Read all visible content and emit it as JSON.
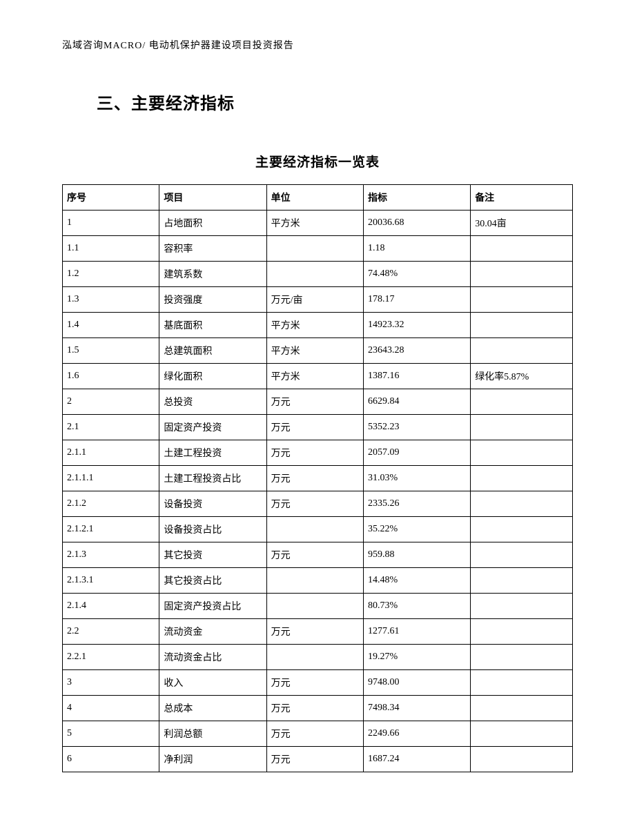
{
  "header": {
    "text": "泓域咨询MACRO/    电动机保护器建设项目投资报告"
  },
  "section": {
    "title": "三、主要经济指标"
  },
  "table": {
    "title": "主要经济指标一览表",
    "columns": [
      "序号",
      "项目",
      "单位",
      "指标",
      "备注"
    ],
    "rows": [
      [
        "1",
        "占地面积",
        "平方米",
        "20036.68",
        "30.04亩"
      ],
      [
        "1.1",
        "容积率",
        "",
        "1.18",
        ""
      ],
      [
        "1.2",
        "建筑系数",
        "",
        "74.48%",
        ""
      ],
      [
        "1.3",
        "投资强度",
        "万元/亩",
        "178.17",
        ""
      ],
      [
        "1.4",
        "基底面积",
        "平方米",
        "14923.32",
        ""
      ],
      [
        "1.5",
        "总建筑面积",
        "平方米",
        "23643.28",
        ""
      ],
      [
        "1.6",
        "绿化面积",
        "平方米",
        "1387.16",
        "绿化率5.87%"
      ],
      [
        "2",
        "总投资",
        "万元",
        "6629.84",
        ""
      ],
      [
        "2.1",
        "固定资产投资",
        "万元",
        "5352.23",
        ""
      ],
      [
        "2.1.1",
        "土建工程投资",
        "万元",
        "2057.09",
        ""
      ],
      [
        "2.1.1.1",
        "土建工程投资占比",
        "万元",
        "31.03%",
        ""
      ],
      [
        "2.1.2",
        "设备投资",
        "万元",
        "2335.26",
        ""
      ],
      [
        "2.1.2.1",
        "设备投资占比",
        "",
        "35.22%",
        ""
      ],
      [
        "2.1.3",
        "其它投资",
        "万元",
        "959.88",
        ""
      ],
      [
        "2.1.3.1",
        "其它投资占比",
        "",
        "14.48%",
        ""
      ],
      [
        "2.1.4",
        "固定资产投资占比",
        "",
        "80.73%",
        ""
      ],
      [
        "2.2",
        "流动资金",
        "万元",
        "1277.61",
        ""
      ],
      [
        "2.2.1",
        "流动资金占比",
        "",
        "19.27%",
        ""
      ],
      [
        "3",
        "收入",
        "万元",
        "9748.00",
        ""
      ],
      [
        "4",
        "总成本",
        "万元",
        "7498.34",
        ""
      ],
      [
        "5",
        "利润总额",
        "万元",
        "2249.66",
        ""
      ],
      [
        "6",
        "净利润",
        "万元",
        "1687.24",
        ""
      ]
    ]
  }
}
